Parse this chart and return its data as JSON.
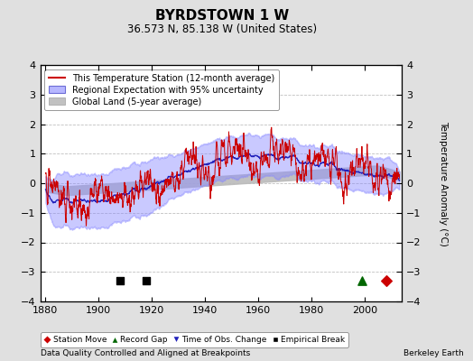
{
  "title": "BYRDSTOWN 1 W",
  "subtitle": "36.573 N, 85.138 W (United States)",
  "ylabel": "Temperature Anomaly (°C)",
  "xlabel_left": "Data Quality Controlled and Aligned at Breakpoints",
  "xlabel_right": "Berkeley Earth",
  "xlim": [
    1878,
    2014
  ],
  "ylim": [
    -4,
    4
  ],
  "yticks": [
    -4,
    -3,
    -2,
    -1,
    0,
    1,
    2,
    3,
    4
  ],
  "xticks": [
    1880,
    1900,
    1920,
    1940,
    1960,
    1980,
    2000
  ],
  "background_color": "#e0e0e0",
  "plot_bg_color": "#ffffff",
  "grid_color": "#b0b0b0",
  "uncertainty_color": "#8888ff",
  "global_land_color": "#bbbbbb",
  "red_line_color": "#cc0000",
  "blue_line_color": "#2222bb",
  "legend_items": [
    "This Temperature Station (12-month average)",
    "Regional Expectation with 95% uncertainty",
    "Global Land (5-year average)"
  ],
  "marker_station_move_x": 2008,
  "marker_station_move_y": -3.3,
  "marker_record_gap_x": 1999,
  "marker_record_gap_y": -3.3,
  "marker_empirical_break1_x": 1908,
  "marker_empirical_break1_y": -3.3,
  "marker_empirical_break2_x": 1918,
  "marker_empirical_break2_y": -3.3
}
